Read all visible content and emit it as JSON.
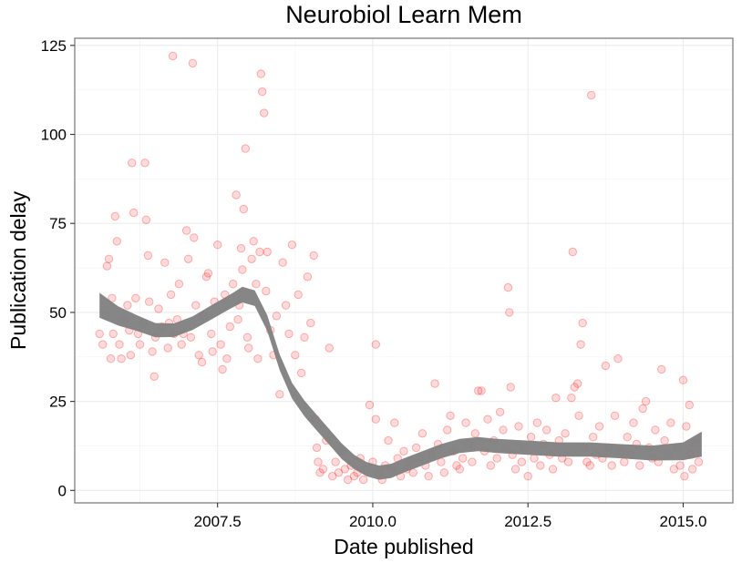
{
  "chart_data": {
    "type": "scatter",
    "title": "Neurobiol Learn Mem",
    "xlabel": "Date published",
    "ylabel": "Publication delay",
    "xlim": [
      2005.2,
      2015.8
    ],
    "ylim": [
      -3.5,
      127
    ],
    "x_ticks": [
      2007.5,
      2010.0,
      2012.5,
      2015.0
    ],
    "x_tick_labels": [
      "2007.5",
      "2010.0",
      "2012.5",
      "2015.0"
    ],
    "y_ticks": [
      0,
      25,
      50,
      75,
      100,
      125
    ],
    "y_tick_labels": [
      "0",
      "25",
      "50",
      "75",
      "100",
      "125"
    ],
    "grid": true,
    "point_color": "#ff0000",
    "band_color": "#808080",
    "points": [
      [
        2005.6,
        44
      ],
      [
        2005.65,
        41
      ],
      [
        2005.7,
        49
      ],
      [
        2005.72,
        63
      ],
      [
        2005.75,
        65
      ],
      [
        2005.78,
        37
      ],
      [
        2005.8,
        54
      ],
      [
        2005.82,
        44
      ],
      [
        2005.85,
        77
      ],
      [
        2005.88,
        70
      ],
      [
        2005.92,
        41
      ],
      [
        2005.95,
        37
      ],
      [
        2006.0,
        48
      ],
      [
        2006.05,
        52
      ],
      [
        2006.08,
        45
      ],
      [
        2006.1,
        38
      ],
      [
        2006.12,
        92
      ],
      [
        2006.15,
        78
      ],
      [
        2006.18,
        54
      ],
      [
        2006.22,
        44
      ],
      [
        2006.25,
        41
      ],
      [
        2006.3,
        47
      ],
      [
        2006.33,
        92
      ],
      [
        2006.35,
        76
      ],
      [
        2006.38,
        66
      ],
      [
        2006.4,
        53
      ],
      [
        2006.45,
        39
      ],
      [
        2006.48,
        32
      ],
      [
        2006.5,
        43
      ],
      [
        2006.55,
        51
      ],
      [
        2006.6,
        46
      ],
      [
        2006.65,
        64
      ],
      [
        2006.7,
        40
      ],
      [
        2006.72,
        47
      ],
      [
        2006.75,
        55
      ],
      [
        2006.78,
        122
      ],
      [
        2006.8,
        44
      ],
      [
        2006.85,
        48
      ],
      [
        2006.88,
        58
      ],
      [
        2006.92,
        41
      ],
      [
        2006.95,
        44
      ],
      [
        2007.0,
        73
      ],
      [
        2007.03,
        65
      ],
      [
        2007.07,
        43
      ],
      [
        2007.1,
        120
      ],
      [
        2007.12,
        71
      ],
      [
        2007.15,
        52
      ],
      [
        2007.2,
        38
      ],
      [
        2007.25,
        36
      ],
      [
        2007.28,
        49
      ],
      [
        2007.32,
        60
      ],
      [
        2007.35,
        61
      ],
      [
        2007.4,
        44
      ],
      [
        2007.42,
        39
      ],
      [
        2007.45,
        53
      ],
      [
        2007.5,
        69
      ],
      [
        2007.55,
        41
      ],
      [
        2007.58,
        34
      ],
      [
        2007.62,
        55
      ],
      [
        2007.65,
        37
      ],
      [
        2007.7,
        46
      ],
      [
        2007.75,
        58
      ],
      [
        2007.8,
        83
      ],
      [
        2007.83,
        48
      ],
      [
        2007.85,
        52
      ],
      [
        2007.88,
        68
      ],
      [
        2007.9,
        62
      ],
      [
        2007.92,
        79
      ],
      [
        2007.95,
        96
      ],
      [
        2007.98,
        43
      ],
      [
        2008.0,
        40
      ],
      [
        2008.05,
        65
      ],
      [
        2008.08,
        70
      ],
      [
        2008.12,
        58
      ],
      [
        2008.15,
        37
      ],
      [
        2008.18,
        67
      ],
      [
        2008.2,
        117
      ],
      [
        2008.22,
        112
      ],
      [
        2008.25,
        106
      ],
      [
        2008.28,
        56
      ],
      [
        2008.3,
        67
      ],
      [
        2008.35,
        45
      ],
      [
        2008.4,
        38
      ],
      [
        2008.45,
        49
      ],
      [
        2008.5,
        27
      ],
      [
        2008.55,
        64
      ],
      [
        2008.6,
        52
      ],
      [
        2008.65,
        44
      ],
      [
        2008.7,
        69
      ],
      [
        2008.75,
        38
      ],
      [
        2008.8,
        55
      ],
      [
        2008.85,
        33
      ],
      [
        2008.9,
        43
      ],
      [
        2008.95,
        60
      ],
      [
        2009.0,
        47
      ],
      [
        2009.05,
        66
      ],
      [
        2009.08,
        20
      ],
      [
        2009.1,
        12
      ],
      [
        2009.12,
        8
      ],
      [
        2009.15,
        5
      ],
      [
        2009.2,
        6
      ],
      [
        2009.25,
        14
      ],
      [
        2009.3,
        40
      ],
      [
        2009.35,
        4
      ],
      [
        2009.4,
        8
      ],
      [
        2009.45,
        5
      ],
      [
        2009.5,
        11
      ],
      [
        2009.55,
        6
      ],
      [
        2009.6,
        3
      ],
      [
        2009.65,
        7
      ],
      [
        2009.7,
        4
      ],
      [
        2009.75,
        5
      ],
      [
        2009.8,
        9
      ],
      [
        2009.85,
        3
      ],
      [
        2009.9,
        6
      ],
      [
        2009.95,
        24
      ],
      [
        2010.0,
        8
      ],
      [
        2010.05,
        41
      ],
      [
        2010.05,
        20
      ],
      [
        2010.1,
        5
      ],
      [
        2010.15,
        3
      ],
      [
        2010.2,
        7
      ],
      [
        2010.25,
        14
      ],
      [
        2010.3,
        6
      ],
      [
        2010.35,
        19
      ],
      [
        2010.4,
        9
      ],
      [
        2010.45,
        4
      ],
      [
        2010.5,
        11
      ],
      [
        2010.55,
        6
      ],
      [
        2010.6,
        8
      ],
      [
        2010.65,
        5
      ],
      [
        2010.7,
        12
      ],
      [
        2010.75,
        9
      ],
      [
        2010.8,
        16
      ],
      [
        2010.85,
        7
      ],
      [
        2010.9,
        4
      ],
      [
        2010.95,
        10
      ],
      [
        2011.0,
        30
      ],
      [
        2011.05,
        13
      ],
      [
        2011.1,
        8
      ],
      [
        2011.15,
        5
      ],
      [
        2011.2,
        17
      ],
      [
        2011.25,
        21
      ],
      [
        2011.3,
        11
      ],
      [
        2011.35,
        7
      ],
      [
        2011.4,
        6
      ],
      [
        2011.45,
        9
      ],
      [
        2011.5,
        19
      ],
      [
        2011.55,
        13
      ],
      [
        2011.6,
        8
      ],
      [
        2011.65,
        16
      ],
      [
        2011.7,
        28
      ],
      [
        2011.75,
        28
      ],
      [
        2011.8,
        11
      ],
      [
        2011.85,
        20
      ],
      [
        2011.9,
        7
      ],
      [
        2011.95,
        14
      ],
      [
        2012.0,
        9
      ],
      [
        2012.05,
        22
      ],
      [
        2012.1,
        17
      ],
      [
        2012.15,
        12
      ],
      [
        2012.18,
        57
      ],
      [
        2012.2,
        50
      ],
      [
        2012.22,
        29
      ],
      [
        2012.25,
        10
      ],
      [
        2012.3,
        6
      ],
      [
        2012.35,
        18
      ],
      [
        2012.4,
        8
      ],
      [
        2012.45,
        12
      ],
      [
        2012.5,
        4
      ],
      [
        2012.55,
        15
      ],
      [
        2012.6,
        9
      ],
      [
        2012.65,
        19
      ],
      [
        2012.7,
        7
      ],
      [
        2012.75,
        13
      ],
      [
        2012.8,
        17
      ],
      [
        2012.85,
        10
      ],
      [
        2012.9,
        6
      ],
      [
        2012.95,
        26
      ],
      [
        2013.0,
        14
      ],
      [
        2013.05,
        9
      ],
      [
        2013.1,
        16
      ],
      [
        2013.15,
        8
      ],
      [
        2013.2,
        26
      ],
      [
        2013.22,
        67
      ],
      [
        2013.25,
        29
      ],
      [
        2013.3,
        30
      ],
      [
        2013.32,
        21
      ],
      [
        2013.35,
        41
      ],
      [
        2013.38,
        47
      ],
      [
        2013.4,
        12
      ],
      [
        2013.45,
        8
      ],
      [
        2013.5,
        7
      ],
      [
        2013.52,
        111
      ],
      [
        2013.55,
        15
      ],
      [
        2013.6,
        10
      ],
      [
        2013.65,
        18
      ],
      [
        2013.7,
        9
      ],
      [
        2013.75,
        35
      ],
      [
        2013.8,
        12
      ],
      [
        2013.85,
        7
      ],
      [
        2013.9,
        21
      ],
      [
        2013.95,
        37
      ],
      [
        2014.0,
        11
      ],
      [
        2014.05,
        8
      ],
      [
        2014.1,
        15
      ],
      [
        2014.15,
        10
      ],
      [
        2014.2,
        19
      ],
      [
        2014.25,
        13
      ],
      [
        2014.3,
        7
      ],
      [
        2014.35,
        23
      ],
      [
        2014.4,
        25
      ],
      [
        2014.45,
        12
      ],
      [
        2014.5,
        9
      ],
      [
        2014.55,
        17
      ],
      [
        2014.6,
        8
      ],
      [
        2014.65,
        34
      ],
      [
        2014.7,
        14
      ],
      [
        2014.75,
        10
      ],
      [
        2014.8,
        19
      ],
      [
        2014.85,
        6
      ],
      [
        2014.9,
        12
      ],
      [
        2014.95,
        7
      ],
      [
        2015.0,
        31
      ],
      [
        2015.02,
        4
      ],
      [
        2015.05,
        18
      ],
      [
        2015.1,
        24
      ],
      [
        2015.12,
        10
      ],
      [
        2015.15,
        6
      ],
      [
        2015.2,
        13
      ],
      [
        2015.25,
        8
      ]
    ],
    "smooth": {
      "x": [
        2005.6,
        2005.9,
        2006.2,
        2006.5,
        2006.8,
        2007.1,
        2007.4,
        2007.7,
        2007.9,
        2008.1,
        2008.3,
        2008.5,
        2008.7,
        2008.9,
        2009.1,
        2009.3,
        2009.5,
        2009.7,
        2009.9,
        2010.1,
        2010.3,
        2010.5,
        2010.8,
        2011.1,
        2011.4,
        2011.7,
        2012.0,
        2012.5,
        2013.0,
        2013.5,
        2014.0,
        2014.5,
        2015.0,
        2015.3
      ],
      "y": [
        52,
        49,
        47,
        45,
        45,
        47,
        50,
        53,
        55,
        54,
        47,
        36,
        28,
        23,
        19,
        15,
        11,
        8,
        6,
        5,
        5.5,
        7,
        9,
        11,
        12.5,
        13,
        12.5,
        12,
        11.5,
        11.5,
        11,
        10.5,
        11,
        13
      ],
      "half_width": [
        3.5,
        2.7,
        2.2,
        2,
        1.9,
        1.9,
        2,
        2,
        2.2,
        2.2,
        2.2,
        2.2,
        2.2,
        2.2,
        2.2,
        2.2,
        2.2,
        2,
        2,
        2,
        2,
        2,
        2,
        2,
        2,
        2,
        2,
        2,
        2,
        2,
        2,
        2.1,
        2.5,
        3.5
      ]
    }
  }
}
